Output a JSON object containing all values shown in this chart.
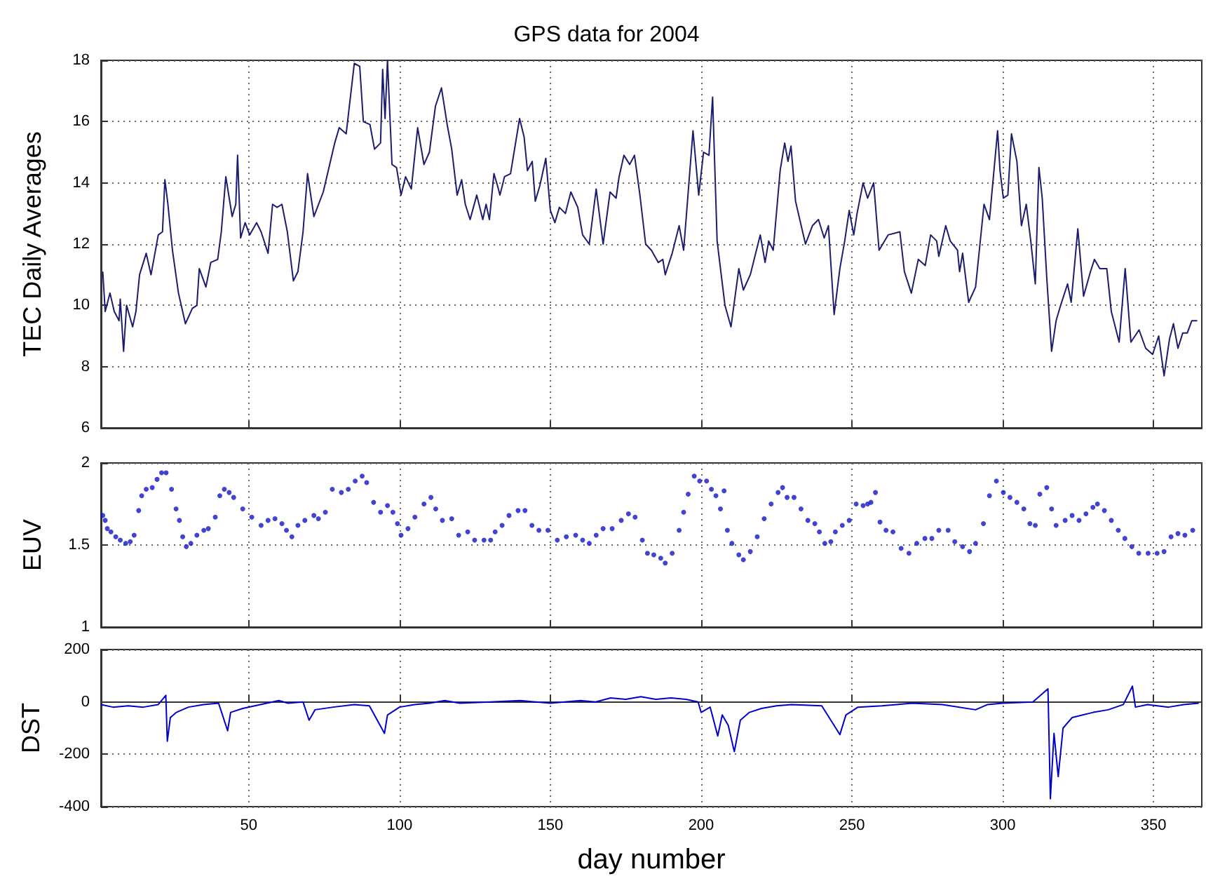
{
  "chart_data": [
    {
      "type": "line",
      "title": "GPS data for 2004",
      "ylabel": "TEC Daily Averages",
      "xlim": [
        1,
        366
      ],
      "xticks": [
        50,
        100,
        150,
        200,
        250,
        300,
        350
      ],
      "ylim": [
        6,
        18
      ],
      "yticks": [
        6,
        8,
        10,
        12,
        14,
        16,
        18
      ],
      "grid": true,
      "tick_labels": "y",
      "x": [
        1.6,
        2.4,
        4,
        5.4,
        7,
        7.4,
        8.5,
        9.5,
        11.5,
        12.6,
        13.8,
        16,
        17.6,
        20,
        21.4,
        22.2,
        23.2,
        24.7,
        26.7,
        29,
        31.3,
        32.8,
        33.6,
        35.8,
        37.4,
        39.7,
        40.9,
        42.4,
        44.5,
        45.7,
        46.3,
        47.3,
        48.8,
        50.3,
        52.6,
        54.1,
        56.4,
        57.9,
        59.4,
        61,
        62.8,
        64.8,
        66.3,
        68,
        69.5,
        71.6,
        74.7,
        78.5,
        80,
        82.3,
        85,
        86.8,
        88,
        90.2,
        91.7,
        93.7,
        94.4,
        95.2,
        96,
        97.5,
        99,
        100.5,
        102,
        103.9,
        106,
        108.1,
        109.9,
        111.9,
        113.9,
        115.8,
        117.3,
        119.1,
        120.6,
        121.8,
        123.4,
        125.6,
        127.6,
        128.7,
        129.8,
        131.3,
        132.5,
        133.3,
        134.8,
        136.8,
        139.8,
        141.3,
        142.4,
        144,
        145,
        146.5,
        148.5,
        150,
        151.5,
        153,
        155,
        156.8,
        159.1,
        160.7,
        162.9,
        165.2,
        167.5,
        169.8,
        171.8,
        172.8,
        174.4,
        176.3,
        177.9,
        179.7,
        181.6,
        183.5,
        185.8,
        187.3,
        188.1,
        190.4,
        192.7,
        194.2,
        197.3,
        199.2,
        200.8,
        202.6,
        203.8,
        205.3,
        207.9,
        209.9,
        212.5,
        214,
        216.3,
        219.6,
        221.2,
        222.4,
        223.9,
        226.2,
        227.7,
        228.8,
        229.8,
        231.3,
        234.6,
        236.9,
        238.9,
        240.8,
        242.2,
        244.1,
        246,
        247.6,
        249.1,
        250.6,
        251.7,
        253.7,
        255.2,
        257.2,
        259,
        262,
        265.9,
        267.4,
        269.7,
        272,
        274.3,
        276.1,
        278.1,
        278.8,
        281.1,
        282.6,
        285,
        285.7,
        286.7,
        288.7,
        291,
        293.8,
        295.6,
        298.3,
        299.1,
        300.2,
        301.7,
        302.9,
        304.7,
        306.2,
        307.8,
        309.3,
        310.8,
        312,
        313.1,
        314.6,
        316.2,
        317.7,
        319.2,
        321.5,
        322.7,
        324.9,
        326.8,
        329.1,
        330.4,
        332.2,
        334.5,
        336,
        338.6,
        340.6,
        342.5,
        345.2,
        347.4,
        349.7,
        351.7,
        353.5,
        355.3,
        356.6,
        358.1,
        359.7,
        361.2,
        362.7,
        364.5
      ],
      "series": [
        {
          "color": "#1c1c70",
          "values": [
            11.1,
            9.8,
            10.4,
            9.8,
            9.5,
            10.2,
            8.5,
            10,
            9.3,
            9.8,
            11,
            11.7,
            11,
            12.3,
            12.4,
            14.1,
            13.3,
            11.8,
            10.4,
            9.4,
            9.9,
            10,
            11.2,
            10.6,
            11.4,
            11.5,
            12.4,
            14.2,
            12.9,
            13.3,
            14.9,
            12.2,
            12.7,
            12.3,
            12.7,
            12.4,
            11.7,
            13.3,
            13.2,
            13.3,
            12.4,
            10.8,
            11.1,
            12.4,
            14.3,
            12.9,
            13.7,
            15.3,
            15.8,
            15.6,
            17.9,
            17.8,
            16,
            15.9,
            15.1,
            15.3,
            17.7,
            16.1,
            18,
            14.6,
            14.5,
            13.6,
            14.2,
            13.8,
            15.8,
            14.6,
            15,
            16.5,
            17.1,
            15.9,
            15.1,
            13.6,
            14.1,
            13.3,
            12.8,
            13.6,
            12.8,
            13.3,
            12.8,
            14.3,
            13.9,
            13.6,
            14.2,
            14.3,
            16.1,
            15.5,
            14.4,
            14.7,
            13.4,
            13.9,
            14.8,
            13.1,
            12.7,
            13.2,
            13,
            13.7,
            13.2,
            12.3,
            12,
            13.8,
            12,
            13.7,
            13.5,
            14.2,
            14.9,
            14.6,
            14.9,
            13.6,
            12,
            11.8,
            11.4,
            11.5,
            11,
            11.7,
            12.6,
            11.8,
            15.7,
            13.6,
            15,
            14.9,
            16.8,
            12.1,
            10,
            9.3,
            11.2,
            10.5,
            11,
            12.3,
            11.4,
            12.1,
            11.8,
            14.4,
            15.3,
            14.7,
            15.2,
            13.4,
            12,
            12.6,
            12.8,
            12.2,
            12.6,
            9.7,
            11.2,
            12.1,
            13.1,
            12.3,
            13,
            14,
            13.5,
            14,
            11.8,
            12.3,
            12.4,
            11.1,
            10.4,
            11.5,
            11.3,
            12.3,
            12.1,
            11.6,
            12.6,
            12.1,
            11.8,
            11.1,
            11.7,
            10.1,
            10.6,
            13.3,
            12.8,
            15.7,
            14.4,
            13.5,
            13.6,
            15.6,
            14.7,
            12.6,
            13.3,
            12.1,
            10.7,
            14.5,
            13.5,
            10.9,
            8.5,
            9.5,
            10,
            10.7,
            10.1,
            12.5,
            10.3,
            11.1,
            11.5,
            11.2,
            11.2,
            9.8,
            8.8,
            11.2,
            8.8,
            9.2,
            8.6,
            8.4,
            9,
            7.7,
            8.9,
            9.4,
            8.6,
            9.1,
            9.1,
            9.5,
            9.5
          ]
        }
      ]
    },
    {
      "type": "scatter",
      "ylabel": "EUV",
      "xlim": [
        1,
        366
      ],
      "xticks": [
        50,
        100,
        150,
        200,
        250,
        300,
        350
      ],
      "ylim": [
        1,
        2
      ],
      "yticks": [
        1,
        1.5,
        2
      ],
      "grid": true,
      "tick_labels": "y",
      "marker": "circle",
      "x": [
        1.6,
        2.4,
        3.1,
        4.3,
        5.9,
        7.4,
        9.2,
        10.7,
        12,
        13.5,
        14.5,
        16,
        18,
        19.6,
        21.1,
        22.6,
        24.4,
        25.9,
        27,
        28.1,
        29.3,
        30.8,
        32.8,
        35.1,
        36.6,
        38.9,
        40.4,
        41.9,
        43.5,
        45,
        48,
        51,
        54.1,
        56.4,
        58.7,
        61,
        62.5,
        64.3,
        66.3,
        68.6,
        71.6,
        73.1,
        75.4,
        77.7,
        80.7,
        83,
        85.3,
        87.6,
        89.1,
        91.4,
        93.7,
        96,
        97.8,
        99.3,
        100.5,
        102.8,
        105.1,
        108.1,
        110.4,
        112,
        114.2,
        117.3,
        119.6,
        122.6,
        124.9,
        128,
        130.2,
        131.7,
        134,
        136.3,
        139.3,
        141.6,
        143.9,
        146.2,
        149.2,
        152.3,
        155.3,
        158.4,
        160.7,
        162.9,
        165.2,
        167.5,
        170.5,
        173.5,
        175.9,
        178.1,
        180.5,
        182.2,
        184.3,
        186.6,
        188.1,
        190.4,
        192.7,
        194.2,
        195.7,
        197.7,
        199.5,
        201.8,
        203.4,
        204.9,
        206.4,
        207.6,
        208.7,
        210.2,
        212.5,
        214,
        216.3,
        218.6,
        220.9,
        223.2,
        225.5,
        227,
        228.5,
        230.8,
        233.1,
        235.4,
        237.7,
        239.2,
        241,
        243,
        244.5,
        246.8,
        249.1,
        251.4,
        253.7,
        255.2,
        256.3,
        257.8,
        259.3,
        261.3,
        263.6,
        266.3,
        268.9,
        271.5,
        274.2,
        276.5,
        278.8,
        281.9,
        284.1,
        286.7,
        289,
        291,
        293.6,
        295.6,
        297.9,
        300.2,
        302.4,
        304.7,
        307,
        309,
        310.8,
        312.3,
        314.6,
        316.2,
        317.7,
        320.7,
        323,
        325.3,
        327.6,
        329.9,
        331.4,
        333.7,
        336,
        338.3,
        340.5,
        342.8,
        345.1,
        348.2,
        351.2,
        353.5,
        355.8,
        358.1,
        360.4,
        363
      ],
      "series": [
        {
          "color": "#1414c8",
          "values": [
            1.68,
            1.65,
            1.6,
            1.58,
            1.55,
            1.53,
            1.51,
            1.52,
            1.56,
            1.71,
            1.8,
            1.84,
            1.85,
            1.9,
            1.94,
            1.94,
            1.84,
            1.72,
            1.65,
            1.55,
            1.49,
            1.51,
            1.56,
            1.59,
            1.6,
            1.67,
            1.8,
            1.84,
            1.82,
            1.79,
            1.72,
            1.67,
            1.62,
            1.65,
            1.66,
            1.63,
            1.59,
            1.55,
            1.62,
            1.65,
            1.68,
            1.66,
            1.7,
            1.84,
            1.82,
            1.84,
            1.89,
            1.92,
            1.88,
            1.76,
            1.7,
            1.74,
            1.7,
            1.63,
            1.56,
            1.6,
            1.67,
            1.75,
            1.79,
            1.72,
            1.65,
            1.66,
            1.56,
            1.58,
            1.53,
            1.53,
            1.53,
            1.58,
            1.62,
            1.68,
            1.71,
            1.71,
            1.62,
            1.59,
            1.59,
            1.53,
            1.55,
            1.56,
            1.53,
            1.51,
            1.56,
            1.6,
            1.6,
            1.65,
            1.69,
            1.67,
            1.53,
            1.45,
            1.44,
            1.42,
            1.39,
            1.45,
            1.59,
            1.7,
            1.81,
            1.92,
            1.89,
            1.89,
            1.84,
            1.8,
            1.72,
            1.83,
            1.59,
            1.51,
            1.44,
            1.41,
            1.46,
            1.55,
            1.66,
            1.75,
            1.82,
            1.85,
            1.79,
            1.79,
            1.72,
            1.65,
            1.63,
            1.58,
            1.51,
            1.52,
            1.58,
            1.62,
            1.65,
            1.75,
            1.74,
            1.75,
            1.76,
            1.82,
            1.64,
            1.59,
            1.58,
            1.48,
            1.45,
            1.51,
            1.54,
            1.54,
            1.59,
            1.59,
            1.52,
            1.49,
            1.46,
            1.51,
            1.63,
            1.8,
            1.89,
            1.82,
            1.79,
            1.76,
            1.72,
            1.63,
            1.62,
            1.81,
            1.85,
            1.72,
            1.62,
            1.65,
            1.68,
            1.65,
            1.69,
            1.73,
            1.75,
            1.71,
            1.65,
            1.59,
            1.54,
            1.49,
            1.45,
            1.45,
            1.45,
            1.46,
            1.55,
            1.57,
            1.56,
            1.59
          ]
        }
      ]
    },
    {
      "type": "line",
      "ylabel": "DST",
      "xlabel": "day number",
      "xlim": [
        1,
        366
      ],
      "xticks": [
        50,
        100,
        150,
        200,
        250,
        300,
        350
      ],
      "ylim": [
        -400,
        200
      ],
      "yticks": [
        -400,
        -200,
        0,
        200
      ],
      "grid": true,
      "x": [
        1,
        5,
        10,
        15,
        20,
        22.5,
        23,
        24,
        26,
        30,
        35,
        40,
        43,
        44,
        48,
        52,
        56,
        60,
        63,
        68,
        70,
        72,
        78,
        85,
        90,
        95,
        96,
        100,
        105,
        110,
        115,
        120,
        130,
        140,
        150,
        160,
        165,
        170,
        175,
        180,
        185,
        190,
        195,
        199,
        200,
        203,
        205.5,
        207,
        209,
        211,
        213,
        216,
        220,
        225,
        230,
        240,
        246,
        248,
        252,
        260,
        270,
        280,
        291,
        295,
        300,
        310,
        315,
        315.8,
        317,
        318.4,
        320,
        323,
        330,
        335,
        340,
        343,
        344,
        348,
        355,
        360,
        365
      ],
      "series": [
        {
          "color": "#0000cc",
          "values": [
            -10,
            -20,
            -15,
            -20,
            -10,
            25,
            -150,
            -60,
            -40,
            -20,
            -10,
            -5,
            -110,
            -40,
            -25,
            -15,
            -5,
            5,
            -5,
            0,
            -70,
            -30,
            -20,
            -10,
            -15,
            -120,
            -50,
            -20,
            -10,
            -5,
            5,
            -5,
            0,
            5,
            -5,
            5,
            0,
            15,
            10,
            20,
            10,
            15,
            10,
            0,
            -40,
            -20,
            -130,
            -50,
            -90,
            -190,
            -70,
            -40,
            -25,
            -15,
            -10,
            -15,
            -125,
            -50,
            -20,
            -15,
            -5,
            -10,
            -30,
            -10,
            -5,
            0,
            50,
            -370,
            -120,
            -285,
            -100,
            -60,
            -40,
            -30,
            -10,
            60,
            -20,
            -10,
            -20,
            -10,
            -5
          ]
        }
      ]
    }
  ]
}
